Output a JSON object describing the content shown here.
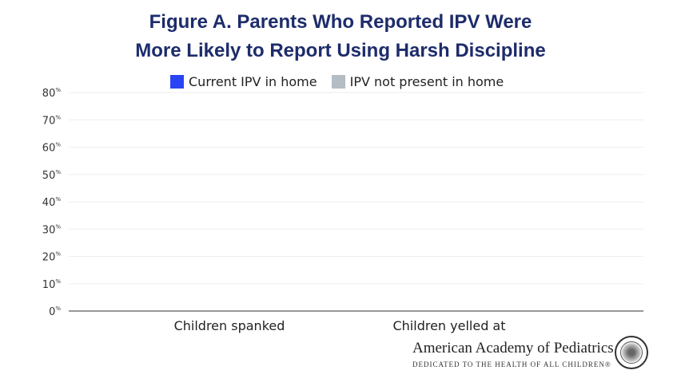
{
  "chart_data": {
    "type": "bar",
    "title": "Figure A. Parents Who Reported IPV Were More Likely to Report Using Harsh Discipline",
    "title_lines": [
      "Figure A. Parents Who Reported IPV Were",
      "More Likely to Report Using Harsh Discipline"
    ],
    "categories": [
      "Children spanked",
      "Children yelled at"
    ],
    "series": [
      {
        "name": "Current IPV in home",
        "color": "#2a44f5",
        "values": [
          0,
          0
        ]
      },
      {
        "name": "IPV not present in home",
        "color": "#b4bcc4",
        "values": [
          0,
          0
        ]
      }
    ],
    "xlabel": "",
    "ylabel": "",
    "ylim": [
      0,
      80
    ],
    "yticks": [
      0,
      10,
      20,
      30,
      40,
      50,
      60,
      70,
      80
    ],
    "ytick_labels": [
      "0",
      "10",
      "20",
      "30",
      "40",
      "50",
      "60",
      "70",
      "80"
    ],
    "ytick_suffix": "%",
    "grid": true,
    "legend_position": "top-center"
  },
  "branding": {
    "org_name": "American Academy of Pediatrics",
    "tagline": "DEDICATED TO THE HEALTH OF ALL CHILDREN®"
  }
}
